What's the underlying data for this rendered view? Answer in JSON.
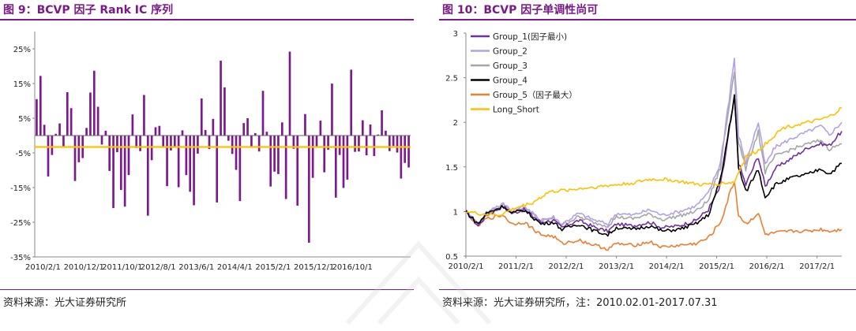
{
  "left": {
    "title": "图 9：BCVP 因子 Rank IC 序列",
    "source": "资料来源：光大证券研究所"
  },
  "right": {
    "title": "图 10：BCVP 因子单调性尚可",
    "source": "资料来源：光大证券研究所，注：2010.02.01-2017.07.31"
  },
  "colors": {
    "title": "#7a1a86",
    "bar": "#7b1a8c",
    "mean_line": "#ffc000",
    "group1": "#7030a0",
    "group2": "#b4a0e6",
    "group3": "#a6a6a6",
    "group4": "#000000",
    "group5": "#ed7d31",
    "long_short": "#ffc000"
  },
  "chart_data": [
    {
      "type": "bar",
      "ylim": [
        -35,
        30
      ],
      "y_ticks": [
        "25%",
        "15%",
        "5%",
        "-5%",
        "-15%",
        "-25%",
        "-35%"
      ],
      "y_tick_values": [
        25,
        15,
        5,
        -5,
        -15,
        -25,
        -35
      ],
      "x_tick_labels": [
        "2010/2/1",
        "2010/12/1",
        "2011/10/1",
        "2012/8/1",
        "2013/6/1",
        "2014/4/1",
        "2015/2/1",
        "2015/12/1",
        "2016/10/1"
      ],
      "mean_ic": -3.3,
      "values": [
        10.5,
        17.2,
        3.1,
        -11.8,
        -5.6,
        0.5,
        3.5,
        -3.3,
        12.5,
        7.9,
        -13.1,
        -7.7,
        -6.5,
        2.2,
        12.4,
        18.7,
        8.3,
        -2.6,
        1.4,
        -10.2,
        -20.9,
        -4.8,
        -15.7,
        -20.5,
        -11.4,
        6.1,
        -3.6,
        -4.5,
        11.7,
        -23.1,
        -7.1,
        2.4,
        2.8,
        -3.2,
        -14.6,
        -4.3,
        -3.1,
        -14.9,
        1.5,
        -11.4,
        -16.2,
        -20.1,
        -5.2,
        10.7,
        1.6,
        -3.9,
        4.8,
        -19.3,
        21.6,
        13.9,
        -1.5,
        -5.3,
        -9.9,
        -18.9,
        3.6,
        5.0,
        -3.5,
        0.7,
        -4.6,
        12.9,
        1.1,
        -14.7,
        -10.4,
        -11.1,
        3.8,
        -18.3,
        24.2,
        -3.8,
        -20.2,
        0.1,
        6.2,
        -30.9,
        -12.2,
        -3.4,
        4.3,
        -10.6,
        -4.1,
        15.0,
        -17.9,
        -5.6,
        -15.1,
        -12.7,
        19.0,
        -4.7,
        -4.6,
        4.4,
        -5.7,
        3.2,
        -5.9,
        0.3,
        7.3,
        1.4,
        -4.5,
        -3.0,
        -4.9,
        -12.4,
        -7.9,
        -9.2
      ]
    },
    {
      "type": "line",
      "ylim": [
        0.5,
        3
      ],
      "y_ticks": [
        "3",
        "2.5",
        "2",
        "1.5",
        "1",
        "0.5"
      ],
      "y_tick_values": [
        3,
        2.5,
        2,
        1.5,
        1,
        0.5
      ],
      "x_tick_labels": [
        "2010/2/1",
        "2011/2/1",
        "2012/2/1",
        "2013/2/1",
        "2014/2/1",
        "2015/2/1",
        "2016/2/1",
        "2017/2/1"
      ],
      "x_range": [
        "2010-02-01",
        "2017-07-31"
      ],
      "x_tick_dates": [
        "2010-02-01",
        "2011-02-01",
        "2012-02-01",
        "2013-02-01",
        "2014-02-01",
        "2015-02-01",
        "2016-02-01",
        "2017-02-01"
      ],
      "legend_position": "top-left",
      "series": [
        {
          "name": "Group_1(因子最小)",
          "color": "#7030a0",
          "width": 2.2,
          "x": [
            "2010-02-01",
            "2010-05-01",
            "2010-07-01",
            "2010-11-01",
            "2011-01-01",
            "2011-04-01",
            "2011-08-01",
            "2011-11-01",
            "2012-01-01",
            "2012-05-01",
            "2012-09-01",
            "2012-12-01",
            "2013-02-01",
            "2013-06-01",
            "2013-10-01",
            "2014-01-01",
            "2014-05-01",
            "2014-09-01",
            "2014-12-01",
            "2015-03-01",
            "2015-06-10",
            "2015-07-10",
            "2015-09-01",
            "2015-12-01",
            "2016-01-20",
            "2016-04-01",
            "2016-08-01",
            "2016-12-01",
            "2017-03-01",
            "2017-05-01",
            "2017-07-31"
          ],
          "y": [
            1.0,
            0.84,
            0.96,
            1.06,
            0.98,
            1.02,
            0.88,
            0.9,
            0.82,
            0.9,
            0.82,
            0.78,
            0.86,
            0.84,
            0.88,
            0.82,
            0.84,
            0.9,
            1.02,
            1.28,
            2.27,
            1.55,
            1.3,
            1.62,
            1.28,
            1.48,
            1.6,
            1.72,
            1.76,
            1.74,
            1.9
          ]
        },
        {
          "name": "Group_2",
          "color": "#b4a0e6",
          "width": 2.2,
          "x": [
            "2010-02-01",
            "2010-05-01",
            "2010-07-01",
            "2010-11-01",
            "2011-01-01",
            "2011-04-01",
            "2011-08-01",
            "2011-11-01",
            "2012-01-01",
            "2012-05-01",
            "2012-09-01",
            "2012-12-01",
            "2013-02-01",
            "2013-06-01",
            "2013-10-01",
            "2014-01-01",
            "2014-05-01",
            "2014-09-01",
            "2014-12-01",
            "2015-03-01",
            "2015-06-10",
            "2015-07-10",
            "2015-09-01",
            "2015-12-01",
            "2016-01-20",
            "2016-04-01",
            "2016-08-01",
            "2016-12-01",
            "2017-03-01",
            "2017-05-01",
            "2017-07-31"
          ],
          "y": [
            1.0,
            0.86,
            0.98,
            1.1,
            1.0,
            1.06,
            0.9,
            0.94,
            0.86,
            0.98,
            0.9,
            0.86,
            0.98,
            0.96,
            1.02,
            0.96,
            1.0,
            1.06,
            1.2,
            1.55,
            2.72,
            1.86,
            1.55,
            2.0,
            1.52,
            1.72,
            1.82,
            1.9,
            1.96,
            1.86,
            2.0
          ]
        },
        {
          "name": "Group_3",
          "color": "#a6a6a6",
          "width": 2.2,
          "x": [
            "2010-02-01",
            "2010-05-01",
            "2010-07-01",
            "2010-11-01",
            "2011-01-01",
            "2011-04-01",
            "2011-08-01",
            "2011-11-01",
            "2012-01-01",
            "2012-05-01",
            "2012-09-01",
            "2012-12-01",
            "2013-02-01",
            "2013-06-01",
            "2013-10-01",
            "2014-01-01",
            "2014-05-01",
            "2014-09-01",
            "2014-12-01",
            "2015-03-01",
            "2015-06-10",
            "2015-07-10",
            "2015-09-01",
            "2015-12-01",
            "2016-01-20",
            "2016-04-01",
            "2016-08-01",
            "2016-12-01",
            "2017-03-01",
            "2017-05-01",
            "2017-07-31"
          ],
          "y": [
            1.0,
            0.86,
            0.98,
            1.08,
            0.99,
            1.04,
            0.9,
            0.92,
            0.85,
            0.94,
            0.87,
            0.84,
            0.94,
            0.92,
            0.97,
            0.91,
            0.95,
            1.0,
            1.12,
            1.5,
            2.6,
            1.78,
            1.48,
            1.9,
            1.44,
            1.62,
            1.7,
            1.76,
            1.8,
            1.7,
            1.76
          ]
        },
        {
          "name": "Group_4",
          "color": "#000000",
          "width": 2.2,
          "x": [
            "2010-02-01",
            "2010-05-01",
            "2010-07-01",
            "2010-11-01",
            "2011-01-01",
            "2011-04-01",
            "2011-08-01",
            "2011-11-01",
            "2012-01-01",
            "2012-05-01",
            "2012-09-01",
            "2012-12-01",
            "2013-02-01",
            "2013-06-01",
            "2013-10-01",
            "2014-01-01",
            "2014-05-01",
            "2014-09-01",
            "2014-12-01",
            "2015-03-01",
            "2015-06-10",
            "2015-07-10",
            "2015-09-01",
            "2015-12-01",
            "2016-01-20",
            "2016-04-01",
            "2016-08-01",
            "2016-12-01",
            "2017-03-01",
            "2017-05-01",
            "2017-07-31"
          ],
          "y": [
            1.0,
            0.86,
            0.98,
            1.06,
            0.98,
            1.02,
            0.86,
            0.88,
            0.8,
            0.86,
            0.78,
            0.74,
            0.82,
            0.8,
            0.84,
            0.78,
            0.8,
            0.86,
            0.96,
            1.35,
            2.3,
            1.5,
            1.22,
            1.48,
            1.16,
            1.3,
            1.38,
            1.42,
            1.48,
            1.42,
            1.54
          ]
        },
        {
          "name": "Group_5（因子最大）",
          "color": "#ed7d31",
          "width": 2.2,
          "x": [
            "2010-02-01",
            "2010-05-01",
            "2010-07-01",
            "2010-11-01",
            "2011-01-01",
            "2011-04-01",
            "2011-08-01",
            "2011-11-01",
            "2012-01-01",
            "2012-05-01",
            "2012-09-01",
            "2012-12-01",
            "2013-02-01",
            "2013-06-01",
            "2013-10-01",
            "2014-01-01",
            "2014-05-01",
            "2014-09-01",
            "2014-12-01",
            "2015-03-01",
            "2015-06-10",
            "2015-07-10",
            "2015-09-01",
            "2015-12-01",
            "2016-01-20",
            "2016-04-01",
            "2016-08-01",
            "2016-12-01",
            "2017-03-01",
            "2017-05-01",
            "2017-07-31"
          ],
          "y": [
            1.0,
            0.84,
            0.92,
            0.96,
            0.86,
            0.88,
            0.74,
            0.72,
            0.64,
            0.68,
            0.62,
            0.58,
            0.64,
            0.62,
            0.66,
            0.6,
            0.62,
            0.64,
            0.7,
            0.88,
            1.35,
            0.96,
            0.86,
            0.98,
            0.74,
            0.76,
            0.78,
            0.78,
            0.8,
            0.78,
            0.8
          ]
        },
        {
          "name": "Long_Short",
          "color": "#ffc000",
          "width": 2.2,
          "x": [
            "2010-02-01",
            "2010-06-01",
            "2010-10-01",
            "2011-02-01",
            "2011-06-01",
            "2011-10-01",
            "2012-02-01",
            "2012-06-01",
            "2012-10-01",
            "2013-02-01",
            "2013-06-01",
            "2013-10-01",
            "2014-02-01",
            "2014-06-01",
            "2014-10-01",
            "2015-02-01",
            "2015-06-10",
            "2015-09-01",
            "2015-12-01",
            "2016-03-01",
            "2016-06-01",
            "2016-10-01",
            "2017-02-01",
            "2017-05-01",
            "2017-07-31"
          ],
          "y": [
            1.0,
            0.97,
            0.96,
            1.04,
            1.1,
            1.22,
            1.24,
            1.26,
            1.28,
            1.3,
            1.32,
            1.36,
            1.36,
            1.33,
            1.3,
            1.31,
            1.33,
            1.62,
            1.68,
            1.82,
            1.94,
            1.98,
            2.02,
            2.06,
            2.16
          ]
        }
      ]
    }
  ]
}
